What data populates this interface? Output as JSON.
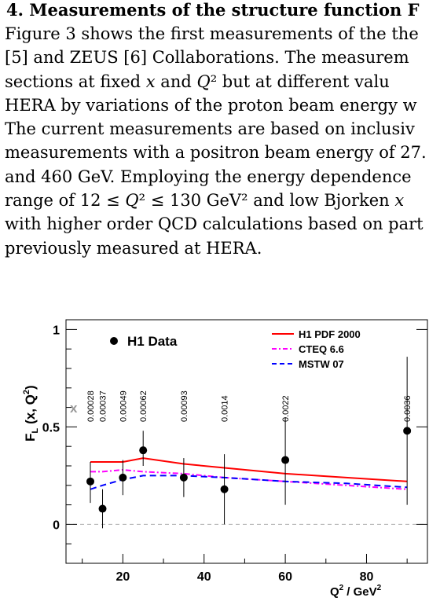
{
  "section": {
    "heading": "4. Measurements of the structure function F",
    "lines": [
      "Figure 3 shows the first measurements of the the",
      "[5] and ZEUS [6] Collaborations.  The measurem",
      "sections at fixed x and Q² but at different valu",
      "HERA by variations of the proton beam energy w",
      "The current measurements are based on inclusiv",
      "measurements with a positron beam energy of 27.",
      "and 460 GeV. Employing the energy dependence",
      "range of 12 ≤ Q² ≤ 130 GeV² and low Bjorken x",
      "with higher order QCD calculations based on part",
      "previously measured at HERA."
    ]
  },
  "figure": {
    "legend": {
      "data_label": "H1 Data",
      "entries": [
        {
          "label": "H1 PDF 2000",
          "color": "#ff0000",
          "dash": "solid"
        },
        {
          "label": "CTEQ 6.6",
          "color": "#ff00ff",
          "dash": "dashdot"
        },
        {
          "label": "MSTW 07",
          "color": "#0000ff",
          "dash": "dashed"
        }
      ]
    },
    "x_symbol": "x",
    "x_values": [
      {
        "q2": 12,
        "label": "0.00028"
      },
      {
        "q2": 15,
        "label": "0.00037"
      },
      {
        "q2": 20,
        "label": "0.00049"
      },
      {
        "q2": 25,
        "label": "0.00062"
      },
      {
        "q2": 35,
        "label": "0.00093"
      },
      {
        "q2": 45,
        "label": "0.0014"
      },
      {
        "q2": 60,
        "label": "0.0022"
      },
      {
        "q2": 90,
        "label": "0.0036"
      }
    ]
  },
  "chart_data": {
    "type": "scatter",
    "ylabel_main": "F",
    "ylabel_sub": "L",
    "ylabel_rest": "(x, Q",
    "ylabel_sup": "2",
    "ylabel_close": ")",
    "xlabel_main": "Q",
    "xlabel_sup": "2",
    "xlabel_rest": "/ GeV",
    "xlabel_sup2": "2",
    "xlim": [
      6,
      95
    ],
    "ylim": [
      -0.2,
      1.05
    ],
    "x_ticks": [
      20,
      40,
      60,
      80
    ],
    "y_ticks": [
      0,
      0.5,
      1
    ],
    "y_tick_labels": [
      "0",
      "0.5",
      "1"
    ],
    "series": [
      {
        "name": "H1 Data",
        "kind": "points",
        "color": "#000000",
        "points": [
          {
            "x": 12,
            "y": 0.22,
            "err_lo": 0.11,
            "err_hi": 0.1
          },
          {
            "x": 15,
            "y": 0.08,
            "err_lo": 0.1,
            "err_hi": 0.1
          },
          {
            "x": 20,
            "y": 0.24,
            "err_lo": 0.09,
            "err_hi": 0.09
          },
          {
            "x": 25,
            "y": 0.38,
            "err_lo": 0.08,
            "err_hi": 0.1
          },
          {
            "x": 35,
            "y": 0.24,
            "err_lo": 0.1,
            "err_hi": 0.1
          },
          {
            "x": 45,
            "y": 0.18,
            "err_lo": 0.18,
            "err_hi": 0.18
          },
          {
            "x": 60,
            "y": 0.33,
            "err_lo": 0.23,
            "err_hi": 0.22
          },
          {
            "x": 90,
            "y": 0.48,
            "err_lo": 0.38,
            "err_hi": 0.38
          }
        ]
      },
      {
        "name": "H1 PDF 2000",
        "kind": "line",
        "color": "#ff0000",
        "dash": "solid",
        "x": [
          12,
          15,
          20,
          25,
          35,
          45,
          60,
          75,
          90
        ],
        "y": [
          0.32,
          0.32,
          0.32,
          0.34,
          0.31,
          0.29,
          0.26,
          0.24,
          0.22
        ]
      },
      {
        "name": "CTEQ 6.6",
        "kind": "line",
        "color": "#ff00ff",
        "dash": "dashdot",
        "x": [
          12,
          15,
          20,
          25,
          35,
          45,
          60,
          75,
          90
        ],
        "y": [
          0.27,
          0.27,
          0.28,
          0.27,
          0.26,
          0.24,
          0.22,
          0.2,
          0.18
        ]
      },
      {
        "name": "MSTW 07",
        "kind": "line",
        "color": "#0000ff",
        "dash": "dashed",
        "x": [
          12,
          15,
          20,
          25,
          35,
          45,
          60,
          75,
          90
        ],
        "y": [
          0.18,
          0.2,
          0.23,
          0.25,
          0.25,
          0.24,
          0.22,
          0.21,
          0.19
        ]
      }
    ],
    "zero_line": true,
    "legend_position": "top-right"
  }
}
